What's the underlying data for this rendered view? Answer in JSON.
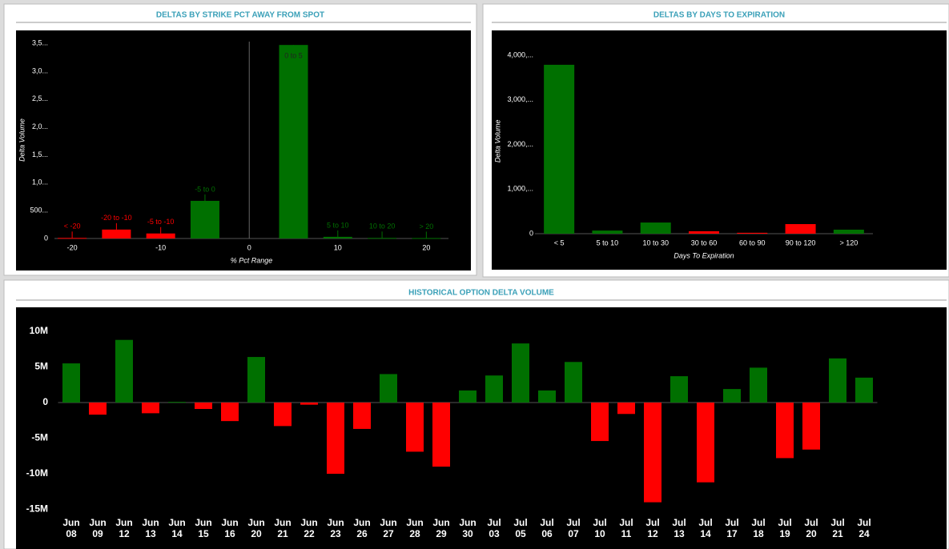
{
  "chart_data": [
    {
      "type": "bar",
      "title": "DELTAS BY STRIKE PCT AWAY FROM SPOT",
      "xlabel": "% Pct Range",
      "ylabel": "Delta Volume",
      "x": [
        -20,
        -15,
        -10,
        -5,
        5,
        10,
        15,
        20
      ],
      "categories": [
        "< -20",
        "-20 to -10",
        "-5 to -10",
        "-5 to 0",
        "0 to 5",
        "5 to 10",
        "10 to 20",
        "> 20"
      ],
      "values": [
        10,
        160,
        90,
        675,
        3470,
        30,
        10,
        8
      ],
      "colors": [
        "#ff0000",
        "#ff0000",
        "#ff0000",
        "#007000",
        "#007000",
        "#007000",
        "#007000",
        "#007000"
      ],
      "xlim": [
        -22,
        22.5
      ],
      "xticks": [
        -20,
        -10,
        0,
        10,
        20
      ],
      "ylim": [
        0,
        3530
      ],
      "yticks": [
        0,
        {
          "value": 500,
          "label": "500..."
        },
        {
          "value": 1000,
          "label": "1,0..."
        },
        {
          "value": 1500,
          "label": "1,5..."
        },
        {
          "value": 2000,
          "label": "2,0..."
        },
        {
          "value": 2500,
          "label": "2,5..."
        },
        {
          "value": 3000,
          "label": "3,0..."
        },
        {
          "value": 3500,
          "label": "3,5..."
        }
      ]
    },
    {
      "type": "bar",
      "title": "DELTAS BY DAYS TO EXPIRATION",
      "xlabel": "Days To Expiration",
      "ylabel": "Delta Volume",
      "categories": [
        "< 5",
        "5 to 10",
        "10 to 30",
        "30 to 60",
        "60 to 90",
        "90 to 120",
        "> 120"
      ],
      "values": [
        3785,
        70,
        250,
        55,
        20,
        215,
        90
      ],
      "colors": [
        "#007000",
        "#007000",
        "#007000",
        "#ff0000",
        "#ff0000",
        "#ff0000",
        "#007000"
      ],
      "ylim": [
        0,
        4150
      ],
      "yticks": [
        0,
        {
          "value": 1000,
          "label": "1,000,..."
        },
        {
          "value": 2000,
          "label": "2,000,..."
        },
        {
          "value": 3000,
          "label": "3,000,..."
        },
        {
          "value": 4000,
          "label": "4,000,..."
        }
      ]
    },
    {
      "type": "bar",
      "title": "HISTORICAL OPTION DELTA VOLUME",
      "categories": [
        "Jun 08",
        "Jun 09",
        "Jun 12",
        "Jun 13",
        "Jun 14",
        "Jun 15",
        "Jun 16",
        "Jun 20",
        "Jun 21",
        "Jun 22",
        "Jun 23",
        "Jun 26",
        "Jun 27",
        "Jun 28",
        "Jun 29",
        "Jun 30",
        "Jul 03",
        "Jul 05",
        "Jul 06",
        "Jul 07",
        "Jul 10",
        "Jul 11",
        "Jul 12",
        "Jul 13",
        "Jul 14",
        "Jul 17",
        "Jul 18",
        "Jul 19",
        "Jul 20",
        "Jul 21",
        "Jul 24"
      ],
      "values": [
        5500000,
        -1700000,
        8800000,
        -1500000,
        100000,
        -900000,
        -2600000,
        6400000,
        -3300000,
        -300000,
        -10000000,
        -3700000,
        4000000,
        -6900000,
        -9000000,
        1700000,
        3800000,
        8300000,
        1700000,
        5700000,
        -5400000,
        -1600000,
        -14000000,
        3700000,
        -11200000,
        1900000,
        4900000,
        -7800000,
        -6600000,
        6200000,
        3500000
      ],
      "up_color": "#007000",
      "down_color": "#ff0000",
      "ylim": [
        -16000000,
        12700000
      ],
      "yticks": [
        {
          "value": 10000000,
          "label": "10M"
        },
        {
          "value": 5000000,
          "label": "5M"
        },
        0,
        {
          "value": -5000000,
          "label": "-5M"
        },
        {
          "value": -10000000,
          "label": "-10M"
        },
        {
          "value": -15000000,
          "label": "-15M"
        }
      ]
    }
  ]
}
